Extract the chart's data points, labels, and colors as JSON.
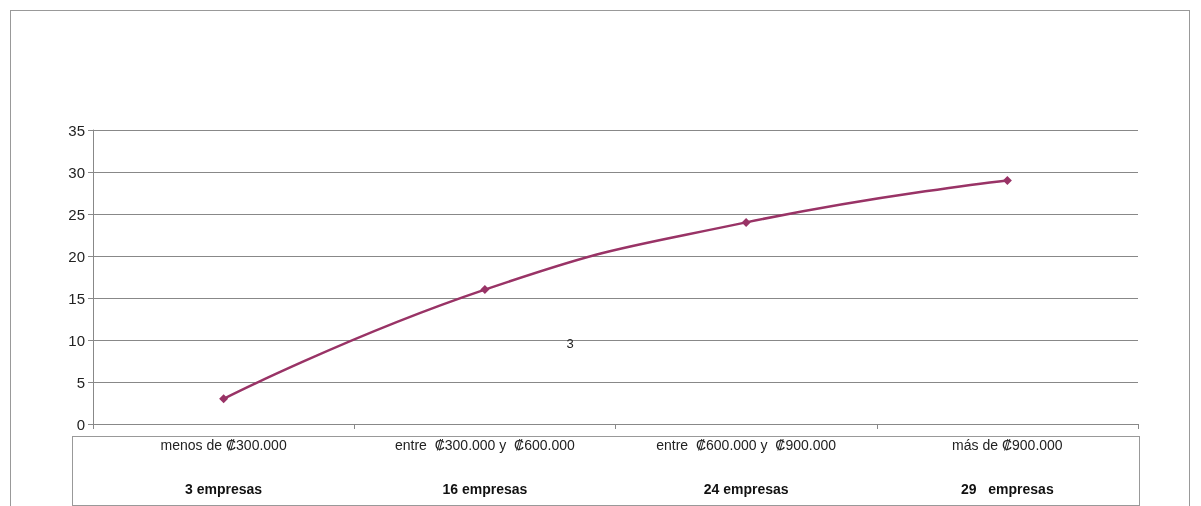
{
  "chart_data": {
    "type": "line",
    "categories": [
      "menos de ₡300.000",
      "entre  ₡300.000 y  ₡600.000",
      "entre  ₡600.000 y  ₡900.000",
      "más de ₡900.000"
    ],
    "series": [
      {
        "color": "#993366",
        "values": [
          3,
          16,
          24,
          29
        ],
        "value_labels": [
          "3 empresas",
          "16 empresas",
          "24 empresas",
          "29   empresas"
        ]
      }
    ],
    "ylim": [
      0,
      35
    ],
    "yticks": [
      0,
      5,
      10,
      15,
      20,
      25,
      30,
      35
    ],
    "grid": "y",
    "marker": "diamond",
    "line_style": "solid",
    "annotations": [
      "3"
    ]
  }
}
